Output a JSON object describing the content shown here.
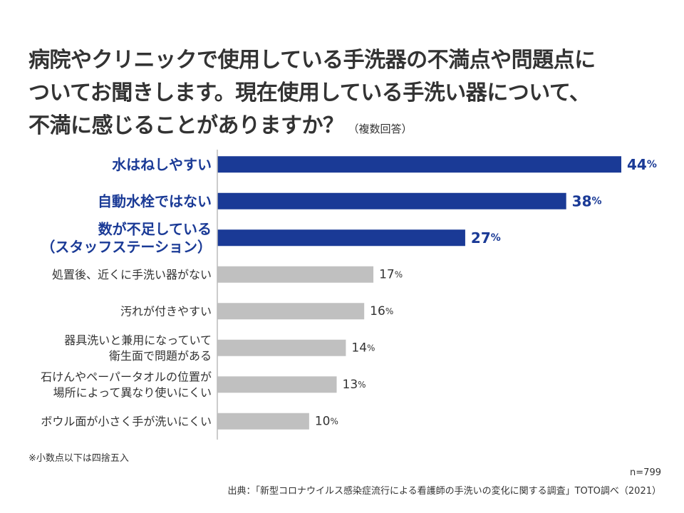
{
  "title": {
    "lines": [
      "病院やクリニックで使用している手洗器の不満点や問題点に",
      "ついてお聞きします。現在使用している手洗い器について、",
      "不満に感じることがありますか？"
    ],
    "subtitle": "（複数回答）"
  },
  "chart_data": {
    "type": "bar",
    "orientation": "horizontal",
    "categories": [
      [
        "水はねしやすい"
      ],
      [
        "自動水栓ではない"
      ],
      [
        "数が不足している",
        "（スタッフステーション）"
      ],
      [
        "処置後、近くに手洗い器がない"
      ],
      [
        "汚れが付きやすい"
      ],
      [
        "器具洗いと兼用になっていて",
        "衛生面で問題がある"
      ],
      [
        "石けんやペーパータオルの位置が",
        "場所によって異なり使いにくい"
      ],
      [
        "ボウル面が小さく手が洗いにくい"
      ]
    ],
    "values": [
      44,
      38,
      27,
      17,
      16,
      14,
      13,
      10
    ],
    "unit": "%",
    "highlighted_top": 3,
    "colors": {
      "highlight": "#1a3a96",
      "normal": "#c0c0c0",
      "axis": "#bbbbbb"
    },
    "xlim": [
      0,
      44
    ],
    "grid": false
  },
  "footer": {
    "note": "※小数点以下は四捨五入",
    "n": "n=799",
    "source": "出典：「新型コロナウイルス感染症流行による看護師の手洗いの変化に関する調査」TOTO調べ（2021）"
  }
}
